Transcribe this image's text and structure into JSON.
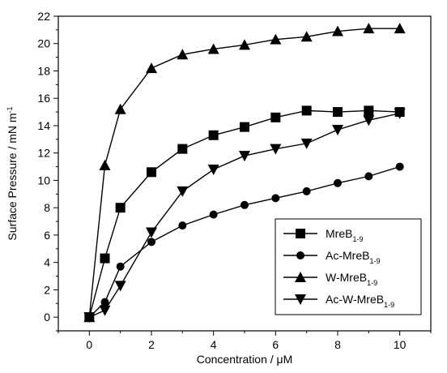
{
  "chart_data": {
    "type": "line",
    "title": "",
    "xlabel": "Concentration / μM",
    "ylabel": "Surface Pressure / mN m",
    "ylabel_superscript": "-1",
    "xlim": [
      -1,
      11
    ],
    "ylim": [
      -1,
      22
    ],
    "xticks": [
      0,
      2,
      4,
      6,
      8,
      10
    ],
    "yticks": [
      0,
      2,
      4,
      6,
      8,
      10,
      12,
      14,
      16,
      18,
      20,
      22
    ],
    "grid": false,
    "legend_position": "bottom-right",
    "series": [
      {
        "name": "MreB",
        "name_subscript": "1-9",
        "marker": "square",
        "x": [
          0,
          0.5,
          1,
          2,
          3,
          4,
          5,
          6,
          7,
          8,
          9,
          10
        ],
        "y": [
          0.0,
          4.3,
          8.0,
          10.6,
          12.3,
          13.3,
          13.9,
          14.6,
          15.1,
          15.0,
          15.1,
          15.0
        ]
      },
      {
        "name": "Ac-MreB",
        "name_subscript": "1-9",
        "marker": "circle",
        "x": [
          0,
          0.5,
          1,
          2,
          3,
          4,
          5,
          6,
          7,
          8,
          9,
          10
        ],
        "y": [
          0.0,
          1.1,
          3.7,
          5.5,
          6.7,
          7.5,
          8.2,
          8.7,
          9.2,
          9.8,
          10.3,
          11.0
        ]
      },
      {
        "name": "W-MreB",
        "name_subscript": "1-9",
        "marker": "triangle-up",
        "x": [
          0,
          0.5,
          1,
          2,
          3,
          4,
          5,
          6,
          7,
          8,
          9,
          10
        ],
        "y": [
          0.0,
          11.1,
          15.2,
          18.2,
          19.2,
          19.6,
          19.9,
          20.3,
          20.5,
          20.9,
          21.1,
          21.1
        ]
      },
      {
        "name": "Ac-W-MreB",
        "name_subscript": "1-9",
        "marker": "triangle-down",
        "x": [
          0,
          0.5,
          1,
          2,
          3,
          4,
          5,
          6,
          7,
          8,
          9,
          10
        ],
        "y": [
          0.0,
          0.5,
          2.3,
          6.2,
          9.2,
          10.8,
          11.8,
          12.3,
          12.7,
          13.7,
          14.4,
          14.9
        ]
      }
    ]
  }
}
